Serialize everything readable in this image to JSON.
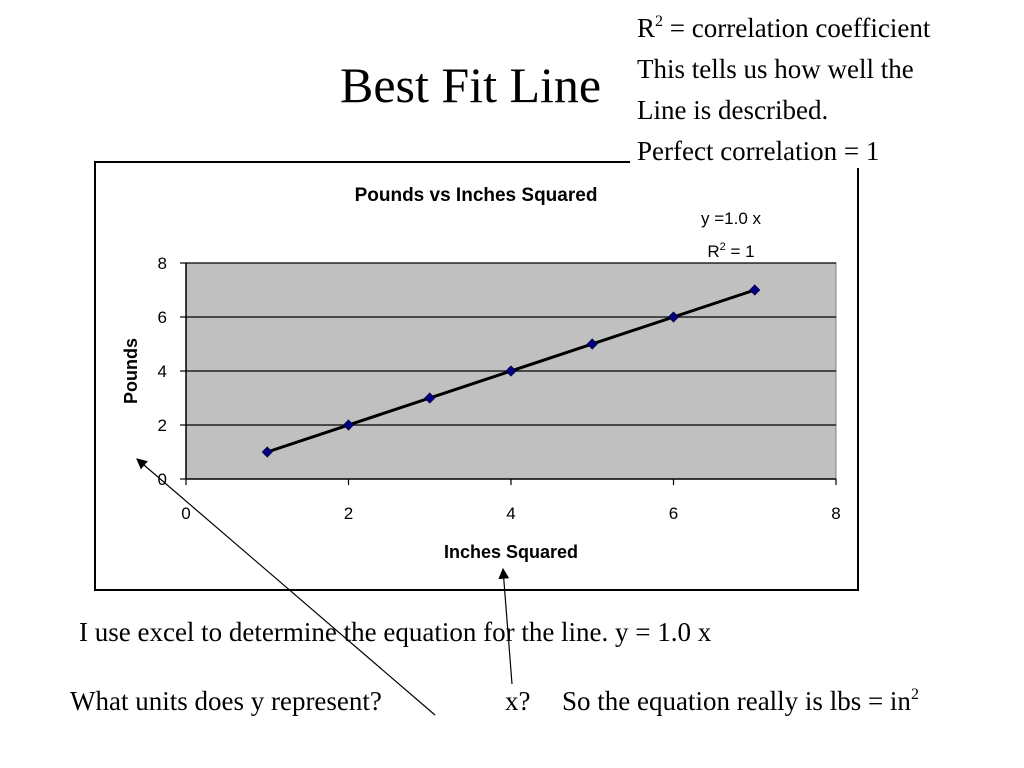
{
  "slide": {
    "title": "Best Fit Line"
  },
  "note": {
    "r2_symbol": "R",
    "r2_exponent": "2",
    "r2_definition": " = correlation coefficient",
    "line2": "This tells us how well the",
    "line3": "Line is described.",
    "line4": "Perfect correlation = 1"
  },
  "body": {
    "excel_sentence": "I use excel to determine the equation for the line.  y = 1.0 x",
    "units_question": "What units does y represent?",
    "x_question": "x?",
    "equation_prefix": "So the equation really is lbs = in",
    "equation_exponent": "2"
  },
  "chart_data": {
    "type": "scatter",
    "title": "Pounds vs Inches Squared",
    "xlabel": "Inches Squared",
    "ylabel": "Pounds",
    "xlim": [
      0,
      8
    ],
    "ylim": [
      0,
      8
    ],
    "xticks": [
      0,
      2,
      4,
      6,
      8
    ],
    "yticks": [
      0,
      2,
      4,
      6,
      8
    ],
    "grid": "horizontal",
    "plot_background": "#c0c0c0",
    "marker_color": "#000080",
    "series": [
      {
        "x": [
          1,
          2,
          3,
          4,
          5,
          6,
          7
        ],
        "y": [
          1,
          2,
          3,
          4,
          5,
          6,
          7
        ]
      }
    ],
    "trendline": {
      "type": "linear",
      "from": [
        1,
        1
      ],
      "to": [
        7,
        7
      ],
      "color": "#000000",
      "equation_text": "y =1.0 x",
      "r2_prefix": "R",
      "r2_exponent": "2",
      "r2_suffix": " = 1"
    }
  }
}
